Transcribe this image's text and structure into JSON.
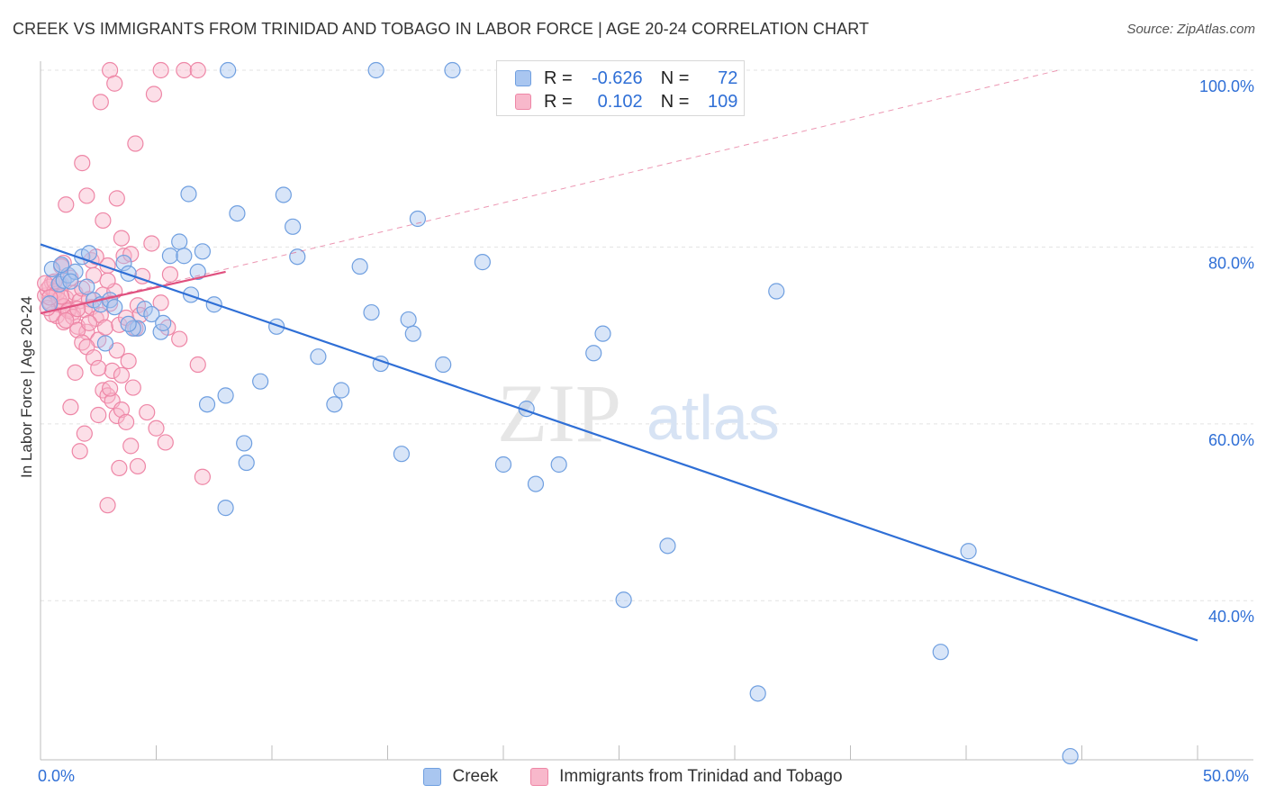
{
  "header": {
    "title": "CREEK VS IMMIGRANTS FROM TRINIDAD AND TOBAGO IN LABOR FORCE | AGE 20-24 CORRELATION CHART",
    "source": "Source: ZipAtlas.com"
  },
  "watermark": {
    "zip": "ZIP",
    "atlas": "atlas"
  },
  "legend": {
    "rows": [
      {
        "r_label": "R =",
        "r_value": "-0.626",
        "n_label": "N =",
        "n_value": "72"
      },
      {
        "r_label": "R =",
        "r_value": "0.102",
        "n_label": "N =",
        "n_value": "109"
      }
    ]
  },
  "colors": {
    "creek_fill": "#a9c6f0",
    "creek_stroke": "#6f9fe0",
    "creek_line": "#2f6fd6",
    "tt_fill": "#f8b8cb",
    "tt_stroke": "#ee86a6",
    "tt_line": "#e0507f",
    "axis_text": "#2f6fd6",
    "grid": "#e3e3e3"
  },
  "chart_data": {
    "type": "scatter",
    "xlabel": "",
    "ylabel": "In Labor Force | Age 20-24",
    "xlim": [
      0,
      50
    ],
    "ylim": [
      22,
      100
    ],
    "x_tick_labels": [
      {
        "value": 0,
        "label": "0.0%"
      },
      {
        "value": 50,
        "label": "50.0%"
      }
    ],
    "y_tick_labels": [
      {
        "value": 40,
        "label": "40.0%"
      },
      {
        "value": 60,
        "label": "60.0%"
      },
      {
        "value": 80,
        "label": "80.0%"
      },
      {
        "value": 100,
        "label": "100.0%"
      }
    ],
    "grid": true,
    "series": [
      {
        "name": "Creek",
        "r": -0.626,
        "n": 72,
        "trend": {
          "x": [
            0,
            50
          ],
          "y": [
            80.3,
            35.5
          ]
        },
        "points": [
          [
            0.5,
            77.5
          ],
          [
            0.8,
            75.8
          ],
          [
            1.0,
            76.2
          ],
          [
            1.2,
            76.8
          ],
          [
            1.5,
            77.2
          ],
          [
            1.8,
            78.9
          ],
          [
            2.0,
            75.5
          ],
          [
            2.3,
            74.0
          ],
          [
            2.6,
            73.5
          ],
          [
            3.0,
            74.0
          ],
          [
            3.2,
            73.2
          ],
          [
            3.6,
            78.2
          ],
          [
            3.8,
            77.0
          ],
          [
            4.2,
            70.8
          ],
          [
            4.5,
            73.0
          ],
          [
            4.8,
            72.4
          ],
          [
            5.2,
            70.4
          ],
          [
            5.6,
            79.0
          ],
          [
            6.0,
            80.6
          ],
          [
            6.2,
            79.0
          ],
          [
            6.5,
            74.6
          ],
          [
            6.8,
            77.2
          ],
          [
            7.0,
            79.5
          ],
          [
            7.5,
            73.5
          ],
          [
            7.2,
            62.2
          ],
          [
            8.0,
            63.2
          ],
          [
            8.5,
            83.8
          ],
          [
            8.8,
            57.8
          ],
          [
            8.9,
            55.6
          ],
          [
            9.5,
            64.8
          ],
          [
            10.2,
            71.0
          ],
          [
            10.5,
            85.9
          ],
          [
            10.9,
            82.3
          ],
          [
            11.1,
            78.9
          ],
          [
            12.0,
            67.6
          ],
          [
            12.7,
            62.2
          ],
          [
            13.0,
            63.8
          ],
          [
            13.8,
            77.8
          ],
          [
            14.5,
            100.0
          ],
          [
            14.3,
            72.6
          ],
          [
            14.7,
            66.8
          ],
          [
            15.6,
            56.6
          ],
          [
            15.9,
            71.8
          ],
          [
            16.1,
            70.2
          ],
          [
            16.3,
            83.2
          ],
          [
            17.4,
            66.7
          ],
          [
            17.8,
            100.0
          ],
          [
            19.1,
            78.3
          ],
          [
            20.0,
            55.4
          ],
          [
            21.0,
            61.7
          ],
          [
            21.4,
            53.2
          ],
          [
            22.4,
            55.4
          ],
          [
            23.9,
            68.0
          ],
          [
            24.3,
            70.2
          ],
          [
            25.2,
            40.1
          ],
          [
            27.1,
            46.2
          ],
          [
            31.0,
            29.5
          ],
          [
            31.8,
            75.0
          ],
          [
            38.9,
            34.2
          ],
          [
            40.1,
            45.6
          ],
          [
            44.5,
            22.4
          ],
          [
            8.0,
            50.5
          ],
          [
            4.0,
            70.8
          ],
          [
            2.8,
            69.1
          ],
          [
            3.8,
            71.3
          ],
          [
            6.4,
            86.0
          ],
          [
            8.1,
            100.0
          ],
          [
            1.3,
            76.1
          ],
          [
            0.4,
            73.6
          ],
          [
            0.9,
            78.0
          ],
          [
            5.3,
            71.4
          ],
          [
            2.1,
            79.3
          ]
        ]
      },
      {
        "name": "Immigrants from Trinidad and Tobago",
        "r": 0.102,
        "n": 109,
        "trend": {
          "x": [
            0,
            8
          ],
          "y": [
            72.5,
            77.2
          ]
        },
        "trend_extended": {
          "x": [
            0,
            44
          ],
          "y": [
            72.5,
            100
          ]
        },
        "points": [
          [
            0.2,
            74.5
          ],
          [
            0.3,
            75.2
          ],
          [
            0.4,
            73.8
          ],
          [
            0.5,
            76.0
          ],
          [
            0.6,
            74.9
          ],
          [
            0.7,
            72.2
          ],
          [
            0.8,
            73.5
          ],
          [
            0.9,
            75.8
          ],
          [
            1.0,
            71.5
          ],
          [
            1.1,
            74.2
          ],
          [
            1.2,
            73.0
          ],
          [
            1.3,
            76.5
          ],
          [
            1.4,
            72.6
          ],
          [
            1.5,
            74.8
          ],
          [
            1.6,
            71.0
          ],
          [
            1.7,
            73.9
          ],
          [
            1.8,
            75.3
          ],
          [
            1.9,
            72.9
          ],
          [
            2.0,
            70.4
          ],
          [
            2.1,
            74.1
          ],
          [
            2.2,
            73.2
          ],
          [
            2.3,
            76.8
          ],
          [
            2.4,
            71.9
          ],
          [
            2.5,
            69.5
          ],
          [
            2.6,
            72.3
          ],
          [
            2.7,
            74.6
          ],
          [
            2.8,
            70.9
          ],
          [
            2.9,
            77.9
          ],
          [
            3.0,
            73.6
          ],
          [
            3.1,
            66.0
          ],
          [
            3.2,
            75.0
          ],
          [
            3.3,
            68.3
          ],
          [
            3.4,
            71.2
          ],
          [
            3.5,
            65.5
          ],
          [
            3.6,
            79.0
          ],
          [
            3.7,
            72.0
          ],
          [
            3.8,
            67.1
          ],
          [
            4.0,
            64.1
          ],
          [
            4.1,
            70.8
          ],
          [
            4.2,
            73.4
          ],
          [
            4.4,
            76.7
          ],
          [
            4.6,
            61.3
          ],
          [
            4.8,
            80.4
          ],
          [
            5.0,
            59.5
          ],
          [
            5.2,
            73.7
          ],
          [
            5.4,
            57.9
          ],
          [
            5.6,
            76.9
          ],
          [
            6.0,
            69.6
          ],
          [
            6.8,
            66.7
          ],
          [
            7.0,
            54.0
          ],
          [
            3.0,
            100.0
          ],
          [
            3.2,
            98.5
          ],
          [
            5.2,
            100.0
          ],
          [
            6.2,
            100.0
          ],
          [
            6.8,
            100.0
          ],
          [
            4.9,
            97.3
          ],
          [
            2.6,
            96.4
          ],
          [
            4.1,
            91.7
          ],
          [
            1.8,
            89.5
          ],
          [
            2.0,
            85.8
          ],
          [
            3.3,
            85.5
          ],
          [
            1.1,
            84.8
          ],
          [
            2.7,
            83.0
          ],
          [
            3.5,
            81.0
          ],
          [
            2.2,
            78.5
          ],
          [
            1.0,
            78.2
          ],
          [
            0.9,
            77.8
          ],
          [
            2.9,
            76.2
          ],
          [
            0.4,
            75.5
          ],
          [
            0.6,
            75.0
          ],
          [
            0.7,
            74.7
          ],
          [
            0.8,
            74.0
          ],
          [
            1.0,
            73.3
          ],
          [
            1.2,
            72.8
          ],
          [
            1.4,
            72.1
          ],
          [
            1.6,
            70.6
          ],
          [
            1.8,
            69.2
          ],
          [
            2.0,
            68.7
          ],
          [
            2.3,
            67.5
          ],
          [
            2.5,
            66.3
          ],
          [
            2.7,
            63.8
          ],
          [
            2.9,
            63.2
          ],
          [
            3.1,
            62.6
          ],
          [
            3.3,
            60.9
          ],
          [
            3.5,
            61.6
          ],
          [
            3.7,
            60.2
          ],
          [
            3.9,
            57.5
          ],
          [
            4.2,
            55.2
          ],
          [
            2.5,
            61.0
          ],
          [
            1.9,
            58.9
          ],
          [
            1.7,
            56.9
          ],
          [
            2.9,
            50.8
          ],
          [
            3.4,
            55.0
          ],
          [
            1.3,
            61.9
          ],
          [
            1.5,
            65.8
          ],
          [
            0.5,
            72.4
          ],
          [
            0.3,
            73.1
          ],
          [
            0.6,
            76.1
          ],
          [
            1.1,
            71.7
          ],
          [
            2.1,
            71.4
          ],
          [
            2.4,
            78.9
          ],
          [
            1.6,
            73.0
          ],
          [
            0.9,
            74.4
          ],
          [
            3.9,
            79.2
          ],
          [
            4.3,
            72.3
          ],
          [
            0.2,
            75.9
          ],
          [
            0.4,
            74.3
          ],
          [
            5.5,
            70.9
          ],
          [
            3.0,
            64.0
          ]
        ]
      }
    ]
  },
  "bottom_legend": {
    "items": [
      {
        "label": "Creek"
      },
      {
        "label": "Immigrants from Trinidad and Tobago"
      }
    ]
  }
}
